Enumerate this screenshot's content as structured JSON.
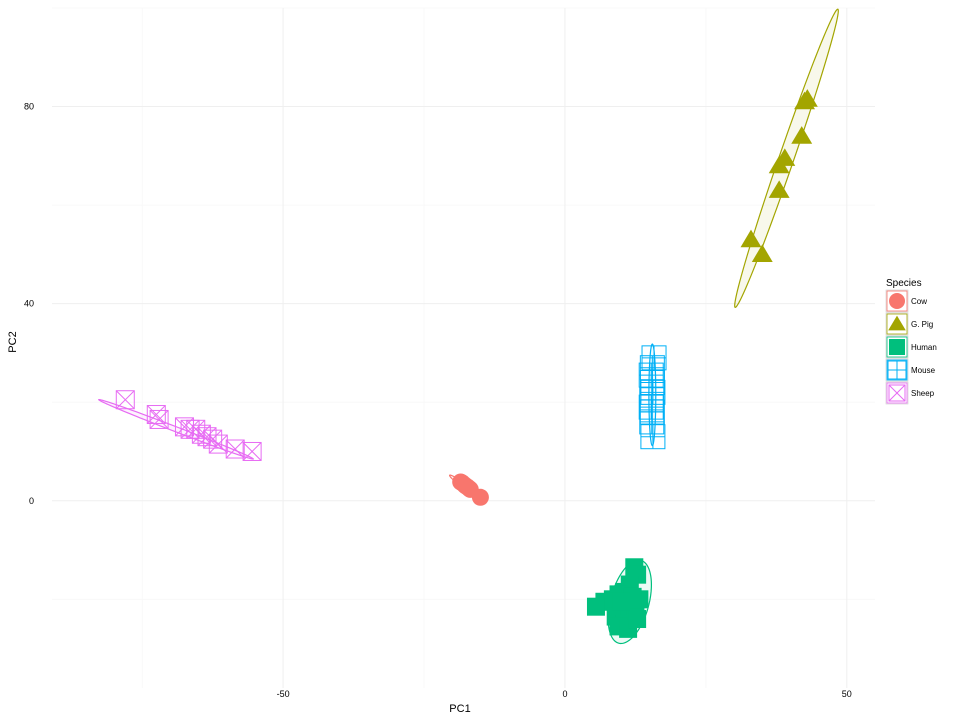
{
  "chart_data": {
    "type": "scatter",
    "xlabel": "PC1",
    "ylabel": "PC2",
    "xlim": [
      -91,
      55
    ],
    "ylim": [
      -38,
      100
    ],
    "xticks": [
      -50,
      0,
      50
    ],
    "yticks": [
      0,
      40,
      80
    ],
    "grid": true,
    "legend_title": "Species",
    "legend_position": "right",
    "series": [
      {
        "name": "Cow",
        "color": "#F8766D",
        "marker": "circle",
        "ellipse": {
          "cx": -18.5,
          "cy": 3.5,
          "rx": 2.8,
          "ry": 0.4,
          "angle": -37
        },
        "points": [
          [
            -18.5,
            3.8
          ],
          [
            -18.2,
            3.6
          ],
          [
            -17.8,
            3.2
          ],
          [
            -17.6,
            3.0
          ],
          [
            -17.3,
            2.8
          ],
          [
            -17.0,
            2.5
          ],
          [
            -16.8,
            2.3
          ],
          [
            -15.0,
            0.7
          ]
        ]
      },
      {
        "name": "G. Pig",
        "color": "#A3A500",
        "marker": "triangle",
        "ellipse": {
          "cx": 39.3,
          "cy": 69.5,
          "rx": 32.0,
          "ry": 1.5,
          "angle": 71
        },
        "points": [
          [
            43.0,
            81.5
          ],
          [
            42.5,
            81.0
          ],
          [
            42.0,
            74.0
          ],
          [
            39.0,
            69.5
          ],
          [
            38.0,
            68.0
          ],
          [
            38.0,
            63.0
          ],
          [
            33.0,
            53.0
          ],
          [
            35.0,
            50.0
          ]
        ]
      },
      {
        "name": "Human",
        "color": "#00BF7D",
        "marker": "square",
        "ellipse": {
          "cx": 11.5,
          "cy": -20.5,
          "rx": 8.7,
          "ry": 3.9,
          "angle": 75
        },
        "points": [
          [
            12.3,
            -13.5
          ],
          [
            12.8,
            -15.0
          ],
          [
            11.5,
            -17.0
          ],
          [
            10.5,
            -18.5
          ],
          [
            9.5,
            -19.0
          ],
          [
            8.5,
            -20.0
          ],
          [
            7.0,
            -20.5
          ],
          [
            5.5,
            -21.5
          ],
          [
            11.0,
            -21.0
          ],
          [
            10.0,
            -22.0
          ],
          [
            9.0,
            -23.5
          ],
          [
            11.5,
            -23.0
          ],
          [
            12.5,
            -22.5
          ],
          [
            10.5,
            -25.0
          ],
          [
            9.5,
            -25.5
          ],
          [
            11.2,
            -26.0
          ],
          [
            12.8,
            -24.0
          ],
          [
            13.2,
            -20.0
          ],
          [
            12.0,
            -19.5
          ],
          [
            10.0,
            -20.5
          ]
        ]
      },
      {
        "name": "Mouse",
        "color": "#00B0F6",
        "marker": "square-plus",
        "ellipse": {
          "cx": 15.5,
          "cy": 21.5,
          "rx": 10.3,
          "ry": 0.7,
          "angle": 90
        },
        "points": [
          [
            15.8,
            29.0
          ],
          [
            15.5,
            27.0
          ],
          [
            15.3,
            25.5
          ],
          [
            15.5,
            24.0
          ],
          [
            15.6,
            22.0
          ],
          [
            15.4,
            20.5
          ],
          [
            15.3,
            19.0
          ],
          [
            15.5,
            18.0
          ],
          [
            15.4,
            16.0
          ],
          [
            15.6,
            13.0
          ]
        ]
      },
      {
        "name": "Sheep",
        "color": "#E76BF3",
        "marker": "square-x",
        "ellipse": {
          "cx": -69.0,
          "cy": 14.5,
          "rx": 16.8,
          "ry": 0.5,
          "angle": -21
        },
        "points": [
          [
            -78.0,
            20.5
          ],
          [
            -72.5,
            17.5
          ],
          [
            -72.0,
            16.5
          ],
          [
            -67.5,
            15.0
          ],
          [
            -66.5,
            14.5
          ],
          [
            -65.5,
            14.5
          ],
          [
            -64.5,
            13.5
          ],
          [
            -63.5,
            13.0
          ],
          [
            -62.5,
            12.5
          ],
          [
            -61.5,
            11.5
          ],
          [
            -58.5,
            10.5
          ],
          [
            -55.5,
            10.0
          ]
        ]
      }
    ]
  }
}
